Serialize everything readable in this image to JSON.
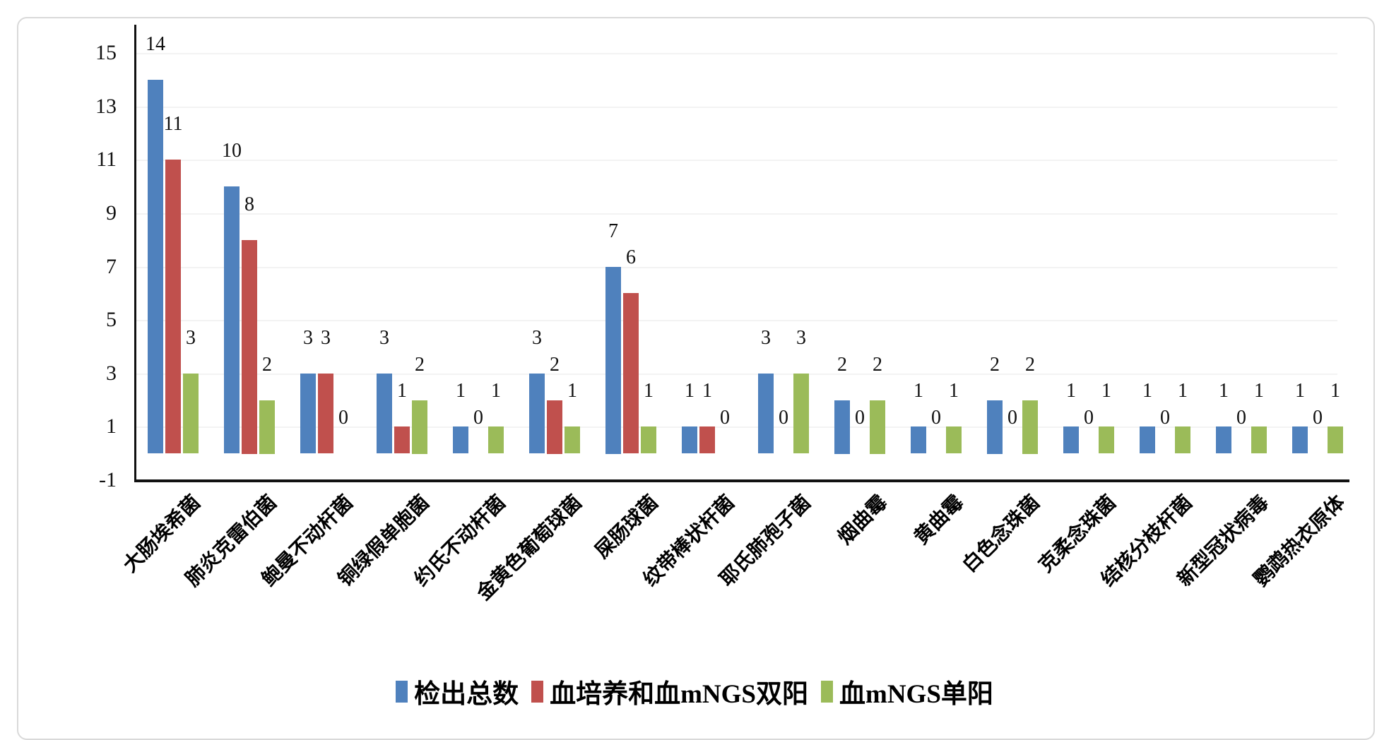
{
  "chart_data": {
    "type": "bar",
    "title": "",
    "xlabel": "",
    "ylabel": "",
    "categories": [
      "大肠埃希菌",
      "肺炎克雷伯菌",
      "鲍曼不动杆菌",
      "铜绿假单胞菌",
      "约氏不动杆菌",
      "金黄色葡萄球菌",
      "屎肠球菌",
      "纹带棒状杆菌",
      "耶氏肺孢子菌",
      "烟曲霉",
      "黄曲霉",
      "白色念珠菌",
      "克柔念珠菌",
      "结核分枝杆菌",
      "新型冠状病毒",
      "鹦鹉热衣原体"
    ],
    "series": [
      {
        "name": "检出总数",
        "color": "#4F81BD",
        "values": [
          14,
          10,
          3,
          3,
          1,
          3,
          7,
          1,
          3,
          2,
          1,
          2,
          1,
          1,
          1,
          1
        ]
      },
      {
        "name": "血培养和血mNGS双阳",
        "color": "#C0504D",
        "values": [
          11,
          8,
          3,
          1,
          0,
          2,
          6,
          1,
          0,
          0,
          0,
          0,
          0,
          0,
          0,
          0
        ]
      },
      {
        "name": "血mNGS单阳",
        "color": "#9BBB59",
        "values": [
          3,
          2,
          0,
          2,
          1,
          1,
          1,
          0,
          3,
          2,
          1,
          2,
          1,
          1,
          1,
          1
        ]
      }
    ],
    "y_ticks": [
      15,
      13,
      11,
      9,
      7,
      5,
      3,
      1,
      -1
    ],
    "ylim": [
      -1,
      15
    ],
    "grid": true,
    "show_data_labels": true,
    "legend_position": "bottom",
    "axis_color": "#111111",
    "gridline_color": "#f3f3f3"
  }
}
